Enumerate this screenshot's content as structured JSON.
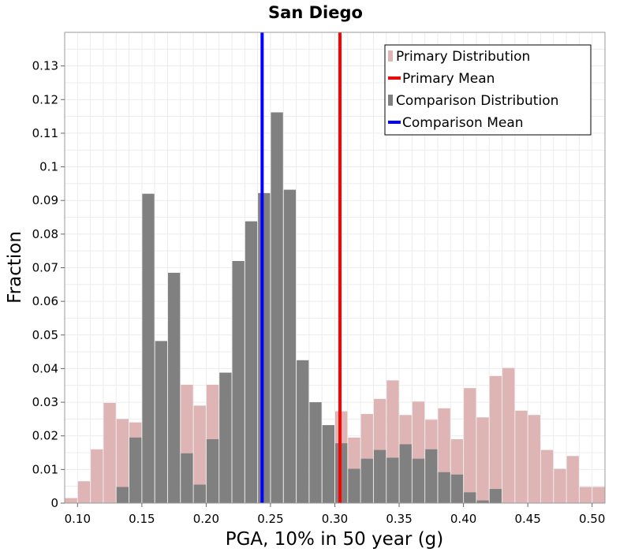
{
  "chart_data": {
    "type": "bar",
    "title": "San Diego",
    "xlabel": "PGA, 10% in 50 year (g)",
    "ylabel": "Fraction",
    "xlim": [
      0.09,
      0.51
    ],
    "ylim": [
      0,
      0.14
    ],
    "bin_width": 0.01,
    "x_ticks": [
      "0.10",
      "0.15",
      "0.20",
      "0.25",
      "0.30",
      "0.35",
      "0.40",
      "0.45",
      "0.50"
    ],
    "y_ticks": [
      "0",
      "0.01",
      "0.02",
      "0.03",
      "0.04",
      "0.05",
      "0.06",
      "0.07",
      "0.08",
      "0.09",
      "0.1",
      "0.11",
      "0.12",
      "0.13"
    ],
    "series": [
      {
        "name": "Primary Distribution",
        "color": "#deb4b4",
        "x": [
          0.095,
          0.105,
          0.115,
          0.125,
          0.135,
          0.145,
          0.155,
          0.165,
          0.175,
          0.185,
          0.195,
          0.205,
          0.215,
          0.225,
          0.235,
          0.245,
          0.255,
          0.265,
          0.275,
          0.285,
          0.295,
          0.305,
          0.315,
          0.325,
          0.335,
          0.345,
          0.355,
          0.365,
          0.375,
          0.385,
          0.395,
          0.405,
          0.415,
          0.425,
          0.435,
          0.445,
          0.455,
          0.465,
          0.475,
          0.485,
          0.495,
          0.505
        ],
        "values": [
          0.0015,
          0.0065,
          0.016,
          0.0298,
          0.025,
          0.024,
          0.0,
          0.0,
          0.0,
          0.0352,
          0.029,
          0.0352,
          0.031,
          0.0,
          0.0,
          0.0,
          0.0,
          0.0,
          0.0,
          0.0,
          0.0,
          0.0273,
          0.0195,
          0.0265,
          0.031,
          0.0365,
          0.0262,
          0.0302,
          0.0248,
          0.0282,
          0.019,
          0.0342,
          0.0255,
          0.0378,
          0.0402,
          0.0275,
          0.0262,
          0.0158,
          0.0102,
          0.014,
          0.0048,
          0.0048
        ]
      },
      {
        "name": "Comparison Distribution",
        "color": "#808080",
        "x": [
          0.135,
          0.145,
          0.155,
          0.165,
          0.175,
          0.185,
          0.195,
          0.205,
          0.215,
          0.225,
          0.235,
          0.245,
          0.255,
          0.265,
          0.275,
          0.285,
          0.295,
          0.305,
          0.315,
          0.325,
          0.335,
          0.345,
          0.355,
          0.365,
          0.375,
          0.385,
          0.395,
          0.405,
          0.415,
          0.425
        ],
        "values": [
          0.0048,
          0.0195,
          0.092,
          0.0482,
          0.0685,
          0.0148,
          0.0055,
          0.019,
          0.0388,
          0.072,
          0.0838,
          0.0922,
          0.1162,
          0.0932,
          0.0425,
          0.03,
          0.0232,
          0.0178,
          0.0102,
          0.0132,
          0.0158,
          0.0135,
          0.0175,
          0.0132,
          0.016,
          0.0092,
          0.0085,
          0.0032,
          0.0008,
          0.0042
        ]
      }
    ],
    "mean_lines": [
      {
        "name": "Primary Mean",
        "color": "#ff0000",
        "x": 0.304
      },
      {
        "name": "Comparison Mean",
        "color": "#0000ff",
        "x": 0.2435
      }
    ],
    "legend": {
      "position": "top-right",
      "entries": [
        {
          "label": "Primary Distribution",
          "kind": "box",
          "color": "#deb4b4"
        },
        {
          "label": "Primary Mean",
          "kind": "line",
          "color": "#ff0000"
        },
        {
          "label": "Comparison Distribution",
          "kind": "box",
          "color": "#808080"
        },
        {
          "label": "Comparison Mean",
          "kind": "line",
          "color": "#0000ff"
        }
      ]
    },
    "grid": true
  }
}
